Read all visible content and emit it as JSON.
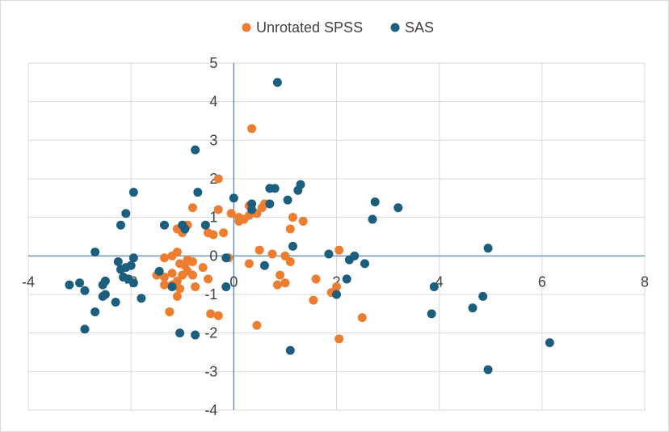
{
  "chart_data": {
    "type": "scatter",
    "title": "",
    "xlabel": "",
    "ylabel": "",
    "xlim": [
      -4,
      8
    ],
    "ylim": [
      -4,
      5
    ],
    "xticks": [
      -4,
      -2,
      0,
      2,
      4,
      6,
      8
    ],
    "yticks": [
      -4,
      -3,
      -2,
      -1,
      0,
      1,
      2,
      3,
      4,
      5
    ],
    "grid": true,
    "legend_position": "top-center",
    "series": [
      {
        "name": "Unrotated SPSS",
        "color": "#ed7d31",
        "points": [
          [
            0.35,
            3.3
          ],
          [
            -0.3,
            2.0
          ],
          [
            -0.8,
            1.25
          ],
          [
            -0.3,
            1.2
          ],
          [
            -0.05,
            1.1
          ],
          [
            0.1,
            1.0
          ],
          [
            0.2,
            0.95
          ],
          [
            0.1,
            0.9
          ],
          [
            0.3,
            1.3
          ],
          [
            0.45,
            1.1
          ],
          [
            0.55,
            1.25
          ],
          [
            0.3,
            1.05
          ],
          [
            0.6,
            1.35
          ],
          [
            1.15,
            1.0
          ],
          [
            1.35,
            0.9
          ],
          [
            -0.9,
            0.8
          ],
          [
            -1.0,
            0.6
          ],
          [
            -0.5,
            0.6
          ],
          [
            -0.4,
            0.55
          ],
          [
            -0.2,
            0.6
          ],
          [
            1.1,
            0.7
          ],
          [
            -1.1,
            0.7
          ],
          [
            -1.1,
            0.1
          ],
          [
            0.5,
            0.15
          ],
          [
            0.75,
            0.05
          ],
          [
            1.0,
            0.0
          ],
          [
            -0.1,
            -0.05
          ],
          [
            -1.2,
            0.0
          ],
          [
            -1.35,
            -0.05
          ],
          [
            -0.9,
            -0.1
          ],
          [
            -1.05,
            -0.2
          ],
          [
            -0.8,
            -0.15
          ],
          [
            -0.95,
            -0.25
          ],
          [
            0.3,
            -0.2
          ],
          [
            1.1,
            -0.15
          ],
          [
            -0.6,
            -0.3
          ],
          [
            -0.9,
            -0.4
          ],
          [
            -1.0,
            -0.5
          ],
          [
            -1.2,
            -0.45
          ],
          [
            -0.8,
            -0.5
          ],
          [
            -1.5,
            -0.5
          ],
          [
            -1.35,
            -0.55
          ],
          [
            -0.5,
            -0.6
          ],
          [
            -1.1,
            -0.65
          ],
          [
            0.9,
            -0.5
          ],
          [
            1.6,
            -0.6
          ],
          [
            -1.2,
            -0.75
          ],
          [
            -1.05,
            -0.85
          ],
          [
            -0.75,
            -0.8
          ],
          [
            0.85,
            -0.75
          ],
          [
            -1.35,
            -0.75
          ],
          [
            -1.1,
            -1.05
          ],
          [
            2.0,
            -0.8
          ],
          [
            1.9,
            -0.95
          ],
          [
            1.55,
            -1.15
          ],
          [
            -1.25,
            -1.45
          ],
          [
            -0.45,
            -1.5
          ],
          [
            -0.3,
            -1.55
          ],
          [
            2.5,
            -1.6
          ],
          [
            0.45,
            -1.8
          ],
          [
            2.05,
            -2.15
          ],
          [
            1.0,
            -0.7
          ],
          [
            2.05,
            0.15
          ]
        ]
      },
      {
        "name": "SAS",
        "color": "#1b5e7e",
        "points": [
          [
            0.85,
            4.5
          ],
          [
            -0.75,
            2.75
          ],
          [
            -1.95,
            1.65
          ],
          [
            -0.7,
            1.65
          ],
          [
            0.7,
            1.75
          ],
          [
            0.8,
            1.75
          ],
          [
            1.3,
            1.85
          ],
          [
            1.25,
            1.7
          ],
          [
            1.05,
            1.45
          ],
          [
            0.0,
            1.5
          ],
          [
            0.35,
            1.35
          ],
          [
            0.35,
            1.2
          ],
          [
            0.7,
            1.35
          ],
          [
            2.75,
            1.4
          ],
          [
            3.2,
            1.25
          ],
          [
            -2.1,
            1.1
          ],
          [
            2.7,
            0.95
          ],
          [
            -2.2,
            0.8
          ],
          [
            -1.35,
            0.8
          ],
          [
            -1.0,
            0.8
          ],
          [
            -0.95,
            0.7
          ],
          [
            -0.55,
            0.8
          ],
          [
            1.15,
            0.25
          ],
          [
            4.95,
            0.2
          ],
          [
            -2.7,
            0.1
          ],
          [
            1.85,
            0.05
          ],
          [
            2.35,
            0.0
          ],
          [
            2.25,
            -0.1
          ],
          [
            2.55,
            -0.2
          ],
          [
            -1.95,
            -0.05
          ],
          [
            -2.25,
            -0.15
          ],
          [
            -2.1,
            -0.3
          ],
          [
            -2.0,
            -0.25
          ],
          [
            -0.15,
            -0.05
          ],
          [
            0.6,
            -0.25
          ],
          [
            -2.2,
            -0.35
          ],
          [
            -1.45,
            -0.4
          ],
          [
            -2.05,
            -0.6
          ],
          [
            -2.15,
            -0.55
          ],
          [
            -1.95,
            -0.7
          ],
          [
            -2.5,
            -0.65
          ],
          [
            -2.55,
            -0.75
          ],
          [
            -3.2,
            -0.75
          ],
          [
            -3.0,
            -0.7
          ],
          [
            -2.9,
            -0.9
          ],
          [
            -1.2,
            -0.8
          ],
          [
            -0.15,
            -0.8
          ],
          [
            2.2,
            -0.6
          ],
          [
            2.0,
            -1.0
          ],
          [
            3.9,
            -0.8
          ],
          [
            -2.5,
            -1.0
          ],
          [
            -2.55,
            -1.05
          ],
          [
            -2.3,
            -1.2
          ],
          [
            -1.8,
            -1.1
          ],
          [
            4.85,
            -1.05
          ],
          [
            4.65,
            -1.35
          ],
          [
            3.85,
            -1.5
          ],
          [
            -2.7,
            -1.45
          ],
          [
            -2.9,
            -1.9
          ],
          [
            -1.05,
            -2.0
          ],
          [
            -0.75,
            -2.05
          ],
          [
            1.1,
            -2.45
          ],
          [
            6.15,
            -2.25
          ],
          [
            4.95,
            -2.95
          ]
        ]
      }
    ]
  }
}
